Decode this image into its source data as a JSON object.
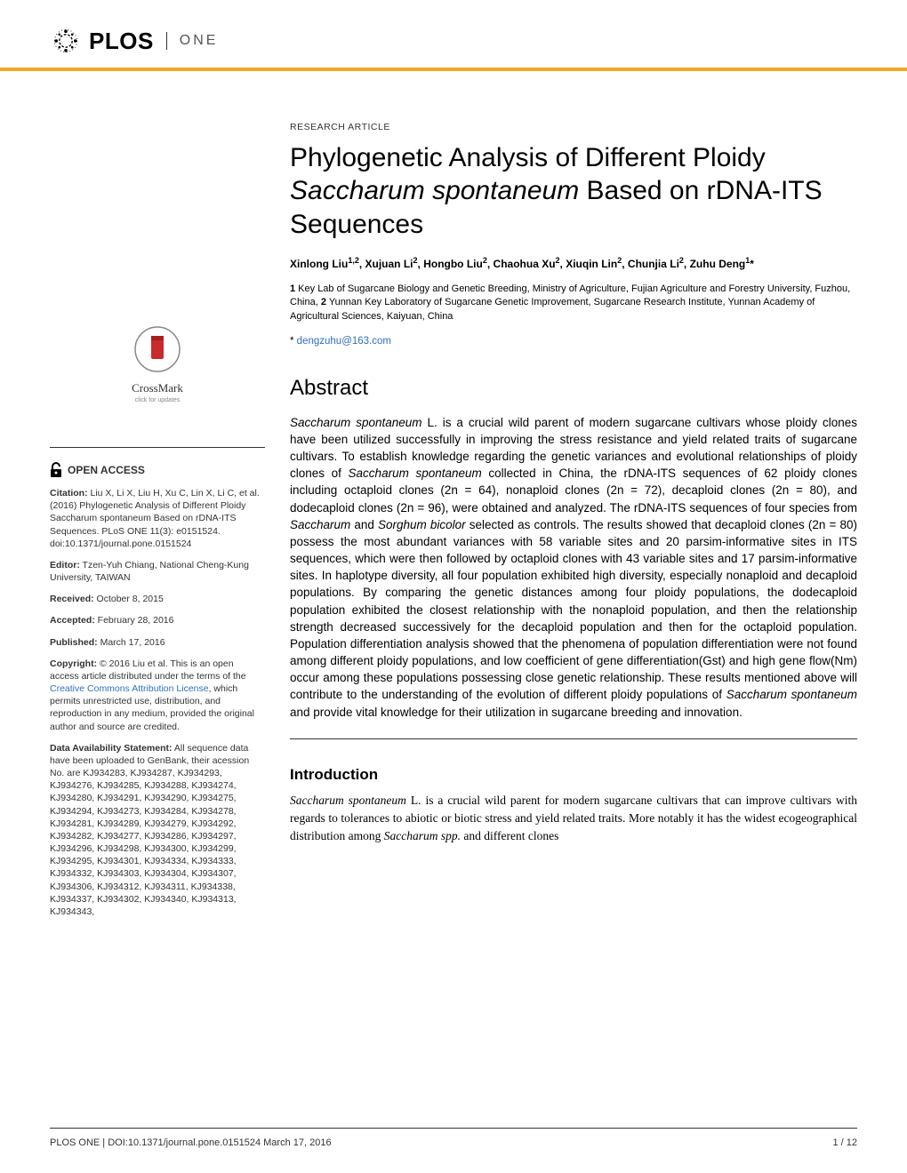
{
  "journal": {
    "brand": "PLOS",
    "name": "ONE"
  },
  "article": {
    "type": "RESEARCH ARTICLE",
    "title_part1": "Phylogenetic Analysis of Different Ploidy ",
    "title_italic": "Saccharum spontaneum",
    "title_part2": " Based on rDNA-ITS Sequences",
    "authors_html": "Xinlong Liu<sup>1,2</sup>, Xujuan Li<sup>2</sup>, Hongbo Liu<sup>2</sup>, Chaohua Xu<sup>2</sup>, Xiuqin Lin<sup>2</sup>, Chunjia Li<sup>2</sup>, Zuhu Deng<sup>1</sup>*",
    "affiliations": "1 Key Lab of Sugarcane Biology and Genetic Breeding, Ministry of Agriculture, Fujian Agriculture and Forestry University, Fuzhou, China, 2 Yunnan Key Laboratory of Sugarcane Genetic Improvement, Sugarcane Research Institute, Yunnan Academy of Agricultural Sciences, Kaiyuan, China",
    "correspondence_email": "dengzuhu@163.com",
    "abstract_heading": "Abstract",
    "abstract": "Saccharum spontaneum L. is a crucial wild parent of modern sugarcane cultivars whose ploidy clones have been utilized successfully in improving the stress resistance and yield related traits of sugarcane cultivars. To establish knowledge regarding the genetic variances and evolutional relationships of ploidy clones of Saccharum spontaneum collected in China, the rDNA-ITS sequences of 62 ploidy clones including octaploid clones (2n = 64), nonaploid clones (2n = 72), decaploid clones (2n = 80), and dodecaploid clones (2n = 96), were obtained and analyzed. The rDNA-ITS sequences of four species from Saccharum and Sorghum bicolor selected as controls. The results showed that decaploid clones (2n = 80) possess the most abundant variances with 58 variable sites and 20 parsim-informative sites in ITS sequences, which were then followed by octaploid clones with 43 variable sites and 17 parsim-informative sites. In haplotype diversity, all four population exhibited high diversity, especially nonaploid and decaploid populations. By comparing the genetic distances among four ploidy populations, the dodecaploid population exhibited the closest relationship with the nonaploid population, and then the relationship strength decreased successively for the decaploid population and then for the octaploid population. Population differentiation analysis showed that the phenomena of population differentiation were not found among different ploidy populations, and low coefficient of gene differentiation(Gst) and high gene flow(Nm) occur among these populations possessing close genetic relationship. These results mentioned above will contribute to the understanding of the evolution of different ploidy populations of Saccharum spontaneum and provide vital knowledge for their utilization in sugarcane breeding and innovation.",
    "intro_heading": "Introduction",
    "intro": "Saccharum spontaneum L. is a crucial wild parent for modern sugarcane cultivars that can improve cultivars with regards to tolerances to abiotic or biotic stress and yield related traits. More notably it has the widest ecogeographical distribution among Saccharum spp. and different clones"
  },
  "sidebar": {
    "crossmark_label": "CrossMark",
    "crossmark_sub": "click for updates",
    "open_access": "OPEN ACCESS",
    "citation_label": "Citation:",
    "citation": " Liu X, Li X, Liu H, Xu C, Lin X, Li C, et al. (2016) Phylogenetic Analysis of Different Ploidy Saccharum spontaneum Based on rDNA-ITS Sequences. PLoS ONE 11(3): e0151524. doi:10.1371/journal.pone.0151524",
    "editor_label": "Editor:",
    "editor": " Tzen-Yuh Chiang, National Cheng-Kung University, TAIWAN",
    "received_label": "Received:",
    "received": " October 8, 2015",
    "accepted_label": "Accepted:",
    "accepted": " February 28, 2016",
    "published_label": "Published:",
    "published": " March 17, 2016",
    "copyright_label": "Copyright:",
    "copyright_pre": " © 2016 Liu et al. This is an open access article distributed under the terms of the ",
    "copyright_link": "Creative Commons Attribution License",
    "copyright_post": ", which permits unrestricted use, distribution, and reproduction in any medium, provided the original author and source are credited.",
    "data_label": "Data Availability Statement:",
    "data": " All sequence data have been uploaded to GenBank, their acession No. are KJ934283, KJ934287, KJ934293, KJ934276, KJ934285, KJ934288, KJ934274, KJ934280, KJ934291, KJ934290, KJ934275, KJ934294, KJ934273, KJ934284, KJ934278, KJ934281, KJ934289, KJ934279, KJ934292, KJ934282, KJ934277, KJ934286, KJ934297, KJ934296, KJ934298, KJ934300, KJ934299, KJ934295, KJ934301, KJ934334, KJ934333, KJ934332, KJ934303, KJ934304, KJ934307, KJ934306, KJ934312, KJ934311, KJ934338, KJ934337, KJ934302, KJ934340, KJ934313, KJ934343,"
  },
  "footer": {
    "left": "PLOS ONE | DOI:10.1371/journal.pone.0151524   March 17, 2016",
    "right": "1 / 12"
  },
  "colors": {
    "accent_orange": "#f5a623",
    "link_blue": "#3070c0",
    "text": "#000000",
    "crossmark_red": "#c92a2a"
  }
}
